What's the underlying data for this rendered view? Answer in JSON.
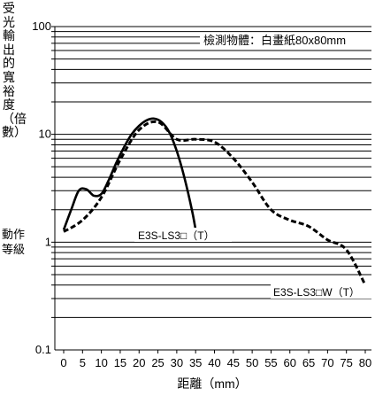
{
  "chart_data": {
    "type": "line",
    "ylabel": "受光輸出的寬裕度（倍數）",
    "xlabel": "距離（mm）",
    "annotation": "檢測物體：白畫紙80x80mm",
    "operation_level_label": "動作等級",
    "operation_level": 1,
    "yscale": "log",
    "ylim": [
      0.1,
      100
    ],
    "xlim": [
      0,
      80
    ],
    "y_ticks": [
      "100",
      "10",
      "1",
      "0.1"
    ],
    "y_tick_values": [
      100,
      10,
      1,
      0.1
    ],
    "x_ticks": [
      "0",
      "5",
      "10",
      "15",
      "20",
      "25",
      "30",
      "35",
      "40",
      "45",
      "50",
      "55",
      "60",
      "65",
      "70",
      "75",
      "80"
    ],
    "x_tick_values": [
      0,
      5,
      10,
      15,
      20,
      25,
      30,
      35,
      40,
      45,
      50,
      55,
      60,
      65,
      70,
      75,
      80
    ],
    "grid": "horizontal",
    "series": [
      {
        "name": "E3S-LS3□（T）",
        "style": "solid",
        "x": [
          0,
          2,
          4,
          6,
          8,
          10,
          12,
          14,
          16,
          18,
          20,
          22,
          24,
          26,
          28,
          30,
          32,
          34,
          35
        ],
        "y": [
          1.3,
          2.0,
          3.0,
          3.1,
          2.7,
          2.8,
          3.8,
          5.5,
          7.6,
          10.0,
          12.0,
          13.5,
          14.0,
          13.0,
          10.5,
          7.0,
          4.0,
          2.0,
          1.3
        ]
      },
      {
        "name": "E3S-LS3□W（T）",
        "style": "dashed",
        "x": [
          0,
          5,
          10,
          15,
          20,
          25,
          30,
          35,
          40,
          45,
          50,
          55,
          60,
          65,
          70,
          75,
          80
        ],
        "y": [
          1.25,
          1.6,
          2.6,
          5.8,
          11.0,
          13.0,
          9.0,
          9.0,
          8.5,
          6.0,
          3.6,
          2.0,
          1.6,
          1.4,
          1.05,
          0.85,
          0.4
        ]
      }
    ]
  }
}
